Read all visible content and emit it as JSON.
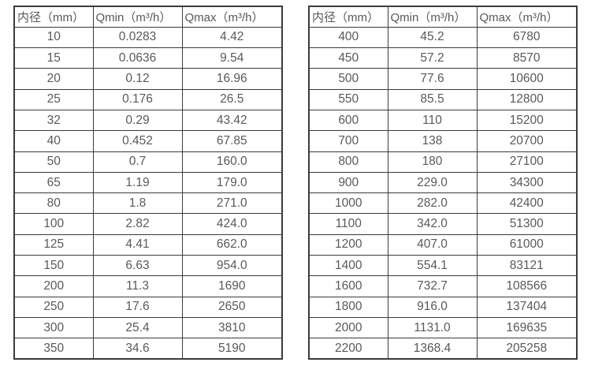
{
  "page": {
    "background_color": "#ffffff",
    "border_color": "#3b3b3b",
    "text_color": "#595959"
  },
  "tables": [
    {
      "name": "flow-rate-table-small-diameters",
      "headers": [
        "内径（mm）",
        "Qmin（m³/h）",
        "Qmax（m³/h）"
      ],
      "rows": [
        [
          "10",
          "0.0283",
          "4.42"
        ],
        [
          "15",
          "0.0636",
          "9.54"
        ],
        [
          "20",
          "0.12",
          "16.96"
        ],
        [
          "25",
          "0.176",
          "26.5"
        ],
        [
          "32",
          "0.29",
          "43.42"
        ],
        [
          "40",
          "0.452",
          "67.85"
        ],
        [
          "50",
          "0.7",
          "160.0"
        ],
        [
          "65",
          "1.19",
          "179.0"
        ],
        [
          "80",
          "1.8",
          "271.0"
        ],
        [
          "100",
          "2.82",
          "424.0"
        ],
        [
          "125",
          "4.41",
          "662.0"
        ],
        [
          "150",
          "6.63",
          "954.0"
        ],
        [
          "200",
          "11.3",
          "1690"
        ],
        [
          "250",
          "17.6",
          "2650"
        ],
        [
          "300",
          "25.4",
          "3810"
        ],
        [
          "350",
          "34.6",
          "5190"
        ]
      ]
    },
    {
      "name": "flow-rate-table-large-diameters",
      "headers": [
        "内径（mm）",
        "Qmin（m³/h）",
        "Qmax（m³/h）"
      ],
      "rows": [
        [
          "400",
          "45.2",
          "6780"
        ],
        [
          "450",
          "57.2",
          "8570"
        ],
        [
          "500",
          "77.6",
          "10600"
        ],
        [
          "550",
          "85.5",
          "12800"
        ],
        [
          "600",
          "110",
          "15200"
        ],
        [
          "700",
          "138",
          "20700"
        ],
        [
          "800",
          "180",
          "27100"
        ],
        [
          "900",
          "229.0",
          "34300"
        ],
        [
          "1000",
          "282.0",
          "42400"
        ],
        [
          "1100",
          "342.0",
          "51300"
        ],
        [
          "1200",
          "407.0",
          "61000"
        ],
        [
          "1400",
          "554.1",
          "83121"
        ],
        [
          "1600",
          "732.7",
          "108566"
        ],
        [
          "1800",
          "916.0",
          "137404"
        ],
        [
          "2000",
          "1131.0",
          "169635"
        ],
        [
          "2200",
          "1368.4",
          "205258"
        ]
      ]
    }
  ]
}
